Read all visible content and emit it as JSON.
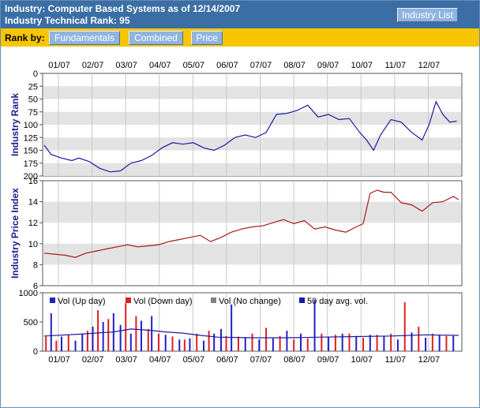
{
  "header": {
    "title_line1": "Industry: Computer Based Systems as of 12/14/2007",
    "title_line2": "Industry Technical Rank: 95",
    "industry_list_button": "Industry List"
  },
  "rank_bar": {
    "label": "Rank by:",
    "buttons": [
      "Fundamentals",
      "Combined",
      "Price"
    ]
  },
  "colors": {
    "header_bg": "#3b6ea5",
    "rank_bar_bg": "#f7c600",
    "rank_line": "#1a1aa8",
    "price_line": "#aa1a1a",
    "vol_up": "#2020c8",
    "vol_down": "#e02020",
    "vol_nochange": "#808080",
    "avg_vol": "#1a1aa8"
  },
  "chart_data": [
    {
      "type": "line",
      "name": "rank-chart",
      "ylabel": "Industry Rank",
      "y_inverted": true,
      "ylim": [
        0,
        200
      ],
      "yticks": [
        0,
        25,
        50,
        75,
        100,
        125,
        150,
        175,
        200
      ],
      "x_tick_labels": [
        "01/07",
        "02/07",
        "03/07",
        "04/07",
        "05/07",
        "06/07",
        "07/07",
        "08/07",
        "09/07",
        "10/07",
        "11/07",
        "12/07"
      ],
      "grid": true,
      "series": [
        {
          "x": [
            0,
            0.2,
            0.5,
            0.8,
            1.0,
            1.3,
            1.6,
            1.9,
            2.2,
            2.5,
            2.8,
            3.1,
            3.4,
            3.7,
            4.0,
            4.3,
            4.6,
            4.9,
            5.2,
            5.5,
            5.8,
            6.1,
            6.4,
            6.7,
            7.0,
            7.3,
            7.6,
            7.9,
            8.2,
            8.5,
            8.8,
            9.1,
            9.3,
            9.5,
            9.7,
            10.0,
            10.3,
            10.6,
            10.9,
            11.1,
            11.3,
            11.5,
            11.7,
            11.9
          ],
          "values": [
            140,
            158,
            165,
            170,
            165,
            172,
            185,
            192,
            190,
            175,
            170,
            160,
            145,
            135,
            138,
            135,
            145,
            150,
            140,
            125,
            120,
            125,
            115,
            80,
            78,
            72,
            62,
            85,
            80,
            90,
            88,
            115,
            130,
            150,
            120,
            90,
            95,
            115,
            130,
            100,
            55,
            80,
            95,
            93
          ]
        }
      ]
    },
    {
      "type": "line",
      "name": "price-chart",
      "ylabel": "Industry Price Index",
      "ylim": [
        6,
        16
      ],
      "yticks": [
        6,
        8,
        10,
        12,
        14,
        16
      ],
      "x_tick_labels": [
        "01/07",
        "02/07",
        "03/07",
        "04/07",
        "05/07",
        "06/07",
        "07/07",
        "08/07",
        "09/07",
        "10/07",
        "11/07",
        "12/07"
      ],
      "grid": true,
      "series": [
        {
          "x": [
            0,
            0.3,
            0.6,
            0.9,
            1.2,
            1.5,
            1.8,
            2.1,
            2.4,
            2.7,
            3.0,
            3.3,
            3.6,
            3.9,
            4.2,
            4.5,
            4.8,
            5.1,
            5.4,
            5.7,
            6.0,
            6.3,
            6.6,
            6.9,
            7.2,
            7.5,
            7.8,
            8.1,
            8.4,
            8.7,
            9.0,
            9.2,
            9.4,
            9.6,
            9.8,
            10.0,
            10.3,
            10.6,
            10.9,
            11.2,
            11.5,
            11.8,
            11.95
          ],
          "values": [
            9.1,
            9.0,
            8.9,
            8.7,
            9.1,
            9.3,
            9.5,
            9.7,
            9.9,
            9.7,
            9.8,
            9.9,
            10.2,
            10.4,
            10.6,
            10.8,
            10.2,
            10.6,
            11.1,
            11.4,
            11.6,
            11.7,
            12.0,
            12.3,
            11.9,
            12.2,
            11.4,
            11.6,
            11.3,
            11.1,
            11.6,
            11.9,
            14.8,
            15.1,
            14.9,
            14.9,
            13.9,
            13.7,
            13.1,
            13.9,
            14.0,
            14.5,
            14.2
          ]
        }
      ]
    },
    {
      "type": "bar",
      "name": "volume-chart",
      "ylim": [
        0,
        1000
      ],
      "yticks": [
        0,
        500,
        1000
      ],
      "x_tick_labels": [
        "01/07",
        "02/07",
        "03/07",
        "04/07",
        "05/07",
        "06/07",
        "07/07",
        "08/07",
        "09/07",
        "10/07",
        "11/07",
        "12/07"
      ],
      "legend": [
        "Vol (Up day)",
        "Vol (Down day)",
        "Vol (No change)",
        "50 day avg. vol."
      ],
      "legend_placement": "top",
      "series": [
        {
          "name": "Vol (Up day)",
          "x": [
            0.2,
            0.5,
            0.9,
            1.1,
            1.4,
            1.7,
            2.0,
            2.2,
            2.5,
            2.8,
            3.1,
            3.5,
            3.9,
            4.2,
            4.6,
            4.9,
            5.1,
            5.4,
            5.8,
            6.2,
            6.6,
            7.0,
            7.4,
            7.8,
            8.2,
            8.6,
            9.0,
            9.4,
            9.8,
            10.2,
            10.6,
            11.0,
            11.4,
            11.8
          ],
          "values": [
            650,
            250,
            180,
            300,
            420,
            500,
            650,
            450,
            300,
            520,
            600,
            280,
            200,
            220,
            180,
            300,
            380,
            800,
            240,
            200,
            220,
            350,
            300,
            880,
            240,
            300,
            260,
            280,
            250,
            200,
            320,
            230,
            280,
            260
          ]
        },
        {
          "name": "Vol (Down day)",
          "x": [
            0.05,
            0.35,
            0.7,
            1.25,
            1.55,
            1.85,
            2.35,
            2.65,
            3.0,
            3.3,
            3.7,
            4.05,
            4.4,
            4.75,
            5.25,
            5.6,
            6.0,
            6.4,
            6.8,
            7.2,
            7.6,
            8.0,
            8.4,
            8.8,
            9.2,
            9.6,
            10.0,
            10.4,
            10.8,
            11.2,
            11.6
          ],
          "values": [
            250,
            180,
            280,
            350,
            700,
            550,
            820,
            600,
            380,
            300,
            250,
            200,
            300,
            350,
            260,
            250,
            300,
            400,
            260,
            200,
            220,
            300,
            280,
            300,
            230,
            280,
            300,
            840,
            420,
            300,
            260
          ]
        },
        {
          "name": "50 day avg. vol.",
          "x": [
            0,
            1,
            2,
            2.5,
            3,
            3.5,
            4,
            4.5,
            5,
            6,
            7,
            8,
            9,
            10,
            11,
            11.95
          ],
          "values": [
            260,
            290,
            330,
            380,
            360,
            330,
            310,
            270,
            240,
            230,
            230,
            240,
            250,
            260,
            280,
            270
          ]
        }
      ]
    }
  ]
}
